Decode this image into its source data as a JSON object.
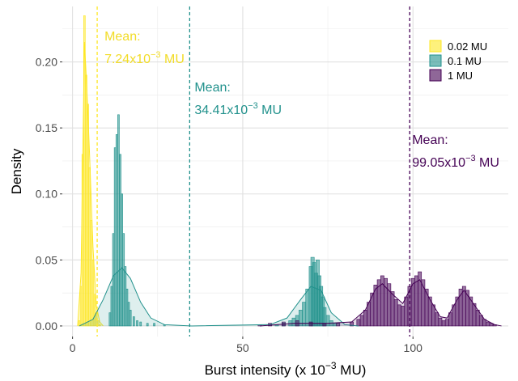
{
  "chart_data": {
    "type": "histogram",
    "xlabel": "Burst intensity (x 10",
    "xlabel_sup": "−3",
    "xlabel_tail": " MU)",
    "ylabel": "Density",
    "xlim": [
      -3,
      128
    ],
    "ylim": [
      -0.008,
      0.242
    ],
    "x_ticks": [
      0,
      50,
      100
    ],
    "x_tick_labels": [
      "0",
      "50",
      "100"
    ],
    "y_ticks": [
      0,
      0.05,
      0.1,
      0.15,
      0.2
    ],
    "y_tick_labels": [
      "0.00",
      "0.05",
      "0.10",
      "0.15",
      "0.20"
    ],
    "grid": true,
    "legend_position": "top-right",
    "legend": [
      {
        "label": "0.02 MU",
        "color": "#fde725"
      },
      {
        "label": "0.1 MU",
        "color": "#21918c"
      },
      {
        "label": "1 MU",
        "color": "#440154"
      }
    ],
    "series": [
      {
        "name": "0.02 MU",
        "color": "#fde725",
        "mean": 7.24,
        "annotation": {
          "line1": "Mean:",
          "prefix": "7.24x10",
          "sup": "−3",
          "suffix": " MU"
        },
        "bins": [
          [
            2.0,
            0.004
          ],
          [
            2.5,
            0.03
          ],
          [
            3.0,
            0.13
          ],
          [
            3.5,
            0.235
          ],
          [
            4.0,
            0.19
          ],
          [
            4.5,
            0.168
          ],
          [
            5.0,
            0.12
          ],
          [
            5.5,
            0.08
          ],
          [
            6.0,
            0.05
          ],
          [
            6.5,
            0.024
          ],
          [
            7.0,
            0.01
          ],
          [
            7.5,
            0.004
          ],
          [
            8.0,
            0.001
          ]
        ],
        "density": [
          [
            1.5,
            0.0
          ],
          [
            2.5,
            0.04
          ],
          [
            3.5,
            0.215
          ],
          [
            4.2,
            0.18
          ],
          [
            5.0,
            0.13
          ],
          [
            6.0,
            0.06
          ],
          [
            7.0,
            0.015
          ],
          [
            8.0,
            0.003
          ],
          [
            9.0,
            0.0
          ]
        ]
      },
      {
        "name": "0.1 MU",
        "color": "#21918c",
        "mean": 34.41,
        "annotation": {
          "line1": "Mean:",
          "prefix": "34.41x10",
          "sup": "−3",
          "suffix": " MU"
        },
        "bins": [
          [
            11.0,
            0.01
          ],
          [
            11.5,
            0.03
          ],
          [
            12.0,
            0.07
          ],
          [
            12.5,
            0.135
          ],
          [
            13.0,
            0.145
          ],
          [
            13.5,
            0.16
          ],
          [
            14.0,
            0.13
          ],
          [
            14.5,
            0.1
          ],
          [
            15.0,
            0.07
          ],
          [
            15.5,
            0.045
          ],
          [
            16.0,
            0.028
          ],
          [
            16.5,
            0.018
          ],
          [
            17.0,
            0.012
          ],
          [
            18.0,
            0.007
          ],
          [
            19.0,
            0.004
          ],
          [
            20.0,
            0.003
          ],
          [
            22.0,
            0.002
          ],
          [
            24.0,
            0.002
          ],
          [
            27.0,
            0.001
          ],
          [
            60.0,
            0.001
          ],
          [
            62.0,
            0.002
          ],
          [
            64.0,
            0.004
          ],
          [
            65.0,
            0.006
          ],
          [
            66.0,
            0.008
          ],
          [
            67.0,
            0.012
          ],
          [
            68.0,
            0.018
          ],
          [
            69.0,
            0.028
          ],
          [
            70.0,
            0.045
          ],
          [
            70.5,
            0.052
          ],
          [
            71.0,
            0.048
          ],
          [
            71.5,
            0.04
          ],
          [
            72.0,
            0.05
          ],
          [
            72.5,
            0.038
          ],
          [
            73.0,
            0.03
          ],
          [
            73.5,
            0.022
          ],
          [
            74.0,
            0.014
          ],
          [
            75.0,
            0.008
          ],
          [
            76.0,
            0.004
          ],
          [
            77.0,
            0.002
          ]
        ],
        "density": [
          [
            2.0,
            0.0
          ],
          [
            6.0,
            0.005
          ],
          [
            9.0,
            0.02
          ],
          [
            12.0,
            0.038
          ],
          [
            14.5,
            0.044
          ],
          [
            17.0,
            0.036
          ],
          [
            20.0,
            0.018
          ],
          [
            23.0,
            0.006
          ],
          [
            27.0,
            0.001
          ],
          [
            35.0,
            0.0
          ],
          [
            58.0,
            0.001
          ],
          [
            63.0,
            0.006
          ],
          [
            67.0,
            0.02
          ],
          [
            70.0,
            0.03
          ],
          [
            73.0,
            0.027
          ],
          [
            76.0,
            0.01
          ],
          [
            80.0,
            0.001
          ],
          [
            84.0,
            0.0
          ]
        ]
      },
      {
        "name": "1 MU",
        "color": "#440154",
        "mean": 99.05,
        "annotation": {
          "line1": "Mean:",
          "prefix": "99.05x10",
          "sup": "−3",
          "suffix": " MU"
        },
        "bins": [
          [
            55.0,
            0.001
          ],
          [
            58.0,
            0.002
          ],
          [
            62.0,
            0.003
          ],
          [
            66.0,
            0.004
          ],
          [
            70.0,
            0.003
          ],
          [
            74.0,
            0.002
          ],
          [
            78.0,
            0.002
          ],
          [
            82.0,
            0.003
          ],
          [
            84.0,
            0.005
          ],
          [
            85.0,
            0.008
          ],
          [
            86.0,
            0.012
          ],
          [
            87.0,
            0.018
          ],
          [
            88.0,
            0.025
          ],
          [
            89.0,
            0.031
          ],
          [
            90.0,
            0.035
          ],
          [
            91.0,
            0.038
          ],
          [
            92.0,
            0.036
          ],
          [
            93.0,
            0.032
          ],
          [
            94.0,
            0.026
          ],
          [
            95.0,
            0.02
          ],
          [
            96.0,
            0.016
          ],
          [
            97.0,
            0.015
          ],
          [
            98.0,
            0.022
          ],
          [
            99.0,
            0.03
          ],
          [
            100.0,
            0.036
          ],
          [
            101.0,
            0.038
          ],
          [
            102.0,
            0.041
          ],
          [
            103.0,
            0.035
          ],
          [
            104.0,
            0.028
          ],
          [
            105.0,
            0.022
          ],
          [
            106.0,
            0.016
          ],
          [
            107.0,
            0.01
          ],
          [
            108.0,
            0.006
          ],
          [
            109.0,
            0.004
          ],
          [
            110.0,
            0.005
          ],
          [
            111.0,
            0.01
          ],
          [
            112.0,
            0.016
          ],
          [
            113.0,
            0.022
          ],
          [
            114.0,
            0.028
          ],
          [
            115.0,
            0.03
          ],
          [
            116.0,
            0.027
          ],
          [
            117.0,
            0.022
          ],
          [
            118.0,
            0.017
          ],
          [
            119.0,
            0.012
          ],
          [
            120.0,
            0.008
          ],
          [
            121.0,
            0.005
          ],
          [
            122.0,
            0.003
          ],
          [
            123.0,
            0.002
          ],
          [
            124.0,
            0.001
          ]
        ],
        "density": [
          [
            55.0,
            0.0
          ],
          [
            65.0,
            0.002
          ],
          [
            75.0,
            0.002
          ],
          [
            82.0,
            0.003
          ],
          [
            86.0,
            0.012
          ],
          [
            89.0,
            0.028
          ],
          [
            91.0,
            0.032
          ],
          [
            94.0,
            0.024
          ],
          [
            97.0,
            0.017
          ],
          [
            100.0,
            0.032
          ],
          [
            102.0,
            0.035
          ],
          [
            105.0,
            0.02
          ],
          [
            108.0,
            0.007
          ],
          [
            110.0,
            0.006
          ],
          [
            113.0,
            0.02
          ],
          [
            115.0,
            0.027
          ],
          [
            118.0,
            0.016
          ],
          [
            121.0,
            0.005
          ],
          [
            124.0,
            0.001
          ],
          [
            126.0,
            0.0
          ]
        ]
      }
    ]
  }
}
